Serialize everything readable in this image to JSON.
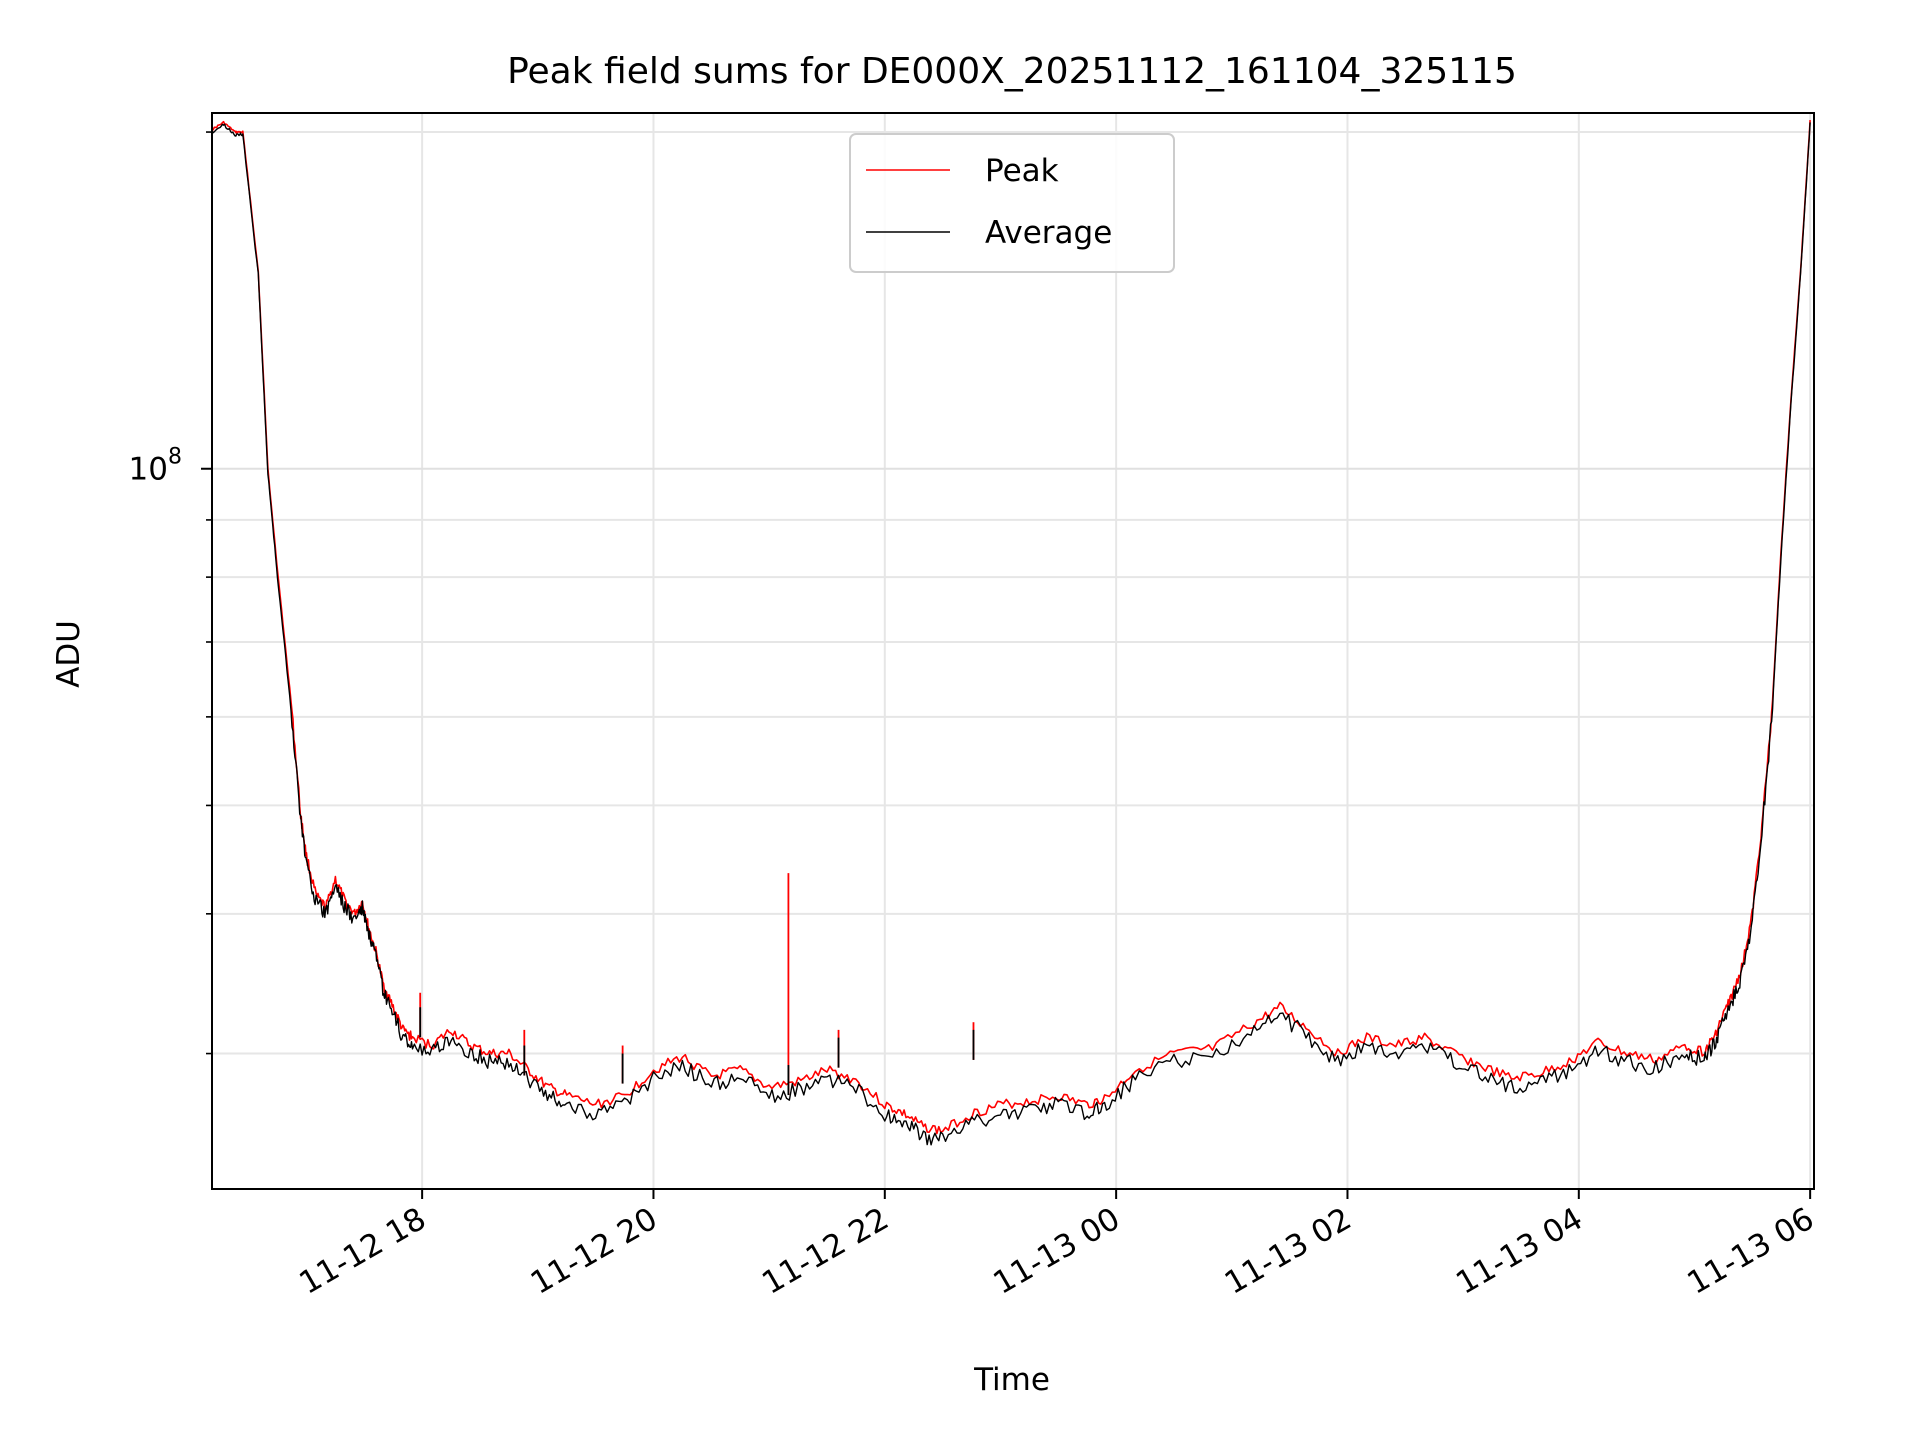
{
  "chart_data": {
    "type": "line",
    "title": "Peak field sums for DE000X_20251112_161104_325115",
    "xlabel": "Time",
    "ylabel": "ADU",
    "yscale": "log",
    "ylim": [
      22700000,
      208000000
    ],
    "xlim": [
      "2025-11-12 16:11",
      "2025-11-13 06:02"
    ],
    "grid": true,
    "legend": "upper center",
    "x_ticks": [
      {
        "value": "2025-11-12 18:00",
        "label": "11-12 18"
      },
      {
        "value": "2025-11-12 20:00",
        "label": "11-12 20"
      },
      {
        "value": "2025-11-12 22:00",
        "label": "11-12 22"
      },
      {
        "value": "2025-11-13 00:00",
        "label": "11-13 00"
      },
      {
        "value": "2025-11-13 02:00",
        "label": "11-13 02"
      },
      {
        "value": "2025-11-13 04:00",
        "label": "11-13 04"
      },
      {
        "value": "2025-11-13 06:00",
        "label": "11-13 06"
      }
    ],
    "y_major_ticks": [
      {
        "value": 100000000,
        "base": "10",
        "exp": "8"
      }
    ],
    "y_minor_ticks": [
      30000000,
      40000000,
      50000000,
      60000000,
      70000000,
      80000000,
      90000000,
      200000000
    ],
    "series": [
      {
        "name": "Peak",
        "color": "#ff0000",
        "x": [
          "2025-11-12 16:11",
          "2025-11-12 16:17",
          "2025-11-12 16:23",
          "2025-11-12 16:27",
          "2025-11-12 16:35",
          "2025-11-12 16:40",
          "2025-11-12 16:45",
          "2025-11-12 16:52",
          "2025-11-12 16:57",
          "2025-11-12 17:00",
          "2025-11-12 17:05",
          "2025-11-12 17:10",
          "2025-11-12 17:15",
          "2025-11-12 17:20",
          "2025-11-12 17:25",
          "2025-11-12 17:29",
          "2025-11-12 17:32",
          "2025-11-12 17:36",
          "2025-11-12 17:40",
          "2025-11-12 17:45",
          "2025-11-12 17:50",
          "2025-11-12 17:55",
          "2025-11-12 18:05",
          "2025-11-12 18:15",
          "2025-11-12 18:25",
          "2025-11-12 18:35",
          "2025-11-12 18:45",
          "2025-11-12 18:55",
          "2025-11-12 19:05",
          "2025-11-12 19:15",
          "2025-11-12 19:30",
          "2025-11-12 19:45",
          "2025-11-12 20:00",
          "2025-11-12 20:15",
          "2025-11-12 20:30",
          "2025-11-12 20:45",
          "2025-11-12 21:00",
          "2025-11-12 21:15",
          "2025-11-12 21:30",
          "2025-11-12 21:45",
          "2025-11-12 22:00",
          "2025-11-12 22:10",
          "2025-11-12 22:20",
          "2025-11-12 22:30",
          "2025-11-12 22:45",
          "2025-11-12 23:00",
          "2025-11-12 23:15",
          "2025-11-12 23:30",
          "2025-11-12 23:45",
          "2025-11-12 23:55",
          "2025-11-13 00:10",
          "2025-11-13 00:30",
          "2025-11-13 00:50",
          "2025-11-13 01:10",
          "2025-11-13 01:25",
          "2025-11-13 01:40",
          "2025-11-13 01:55",
          "2025-11-13 02:10",
          "2025-11-13 02:25",
          "2025-11-13 02:40",
          "2025-11-13 02:55",
          "2025-11-13 03:10",
          "2025-11-13 03:25",
          "2025-11-13 03:40",
          "2025-11-13 03:55",
          "2025-11-13 04:10",
          "2025-11-13 04:25",
          "2025-11-13 04:40",
          "2025-11-13 04:55",
          "2025-11-13 05:05",
          "2025-11-13 05:10",
          "2025-11-13 05:15",
          "2025-11-13 05:20",
          "2025-11-13 05:25",
          "2025-11-13 05:30",
          "2025-11-13 05:35",
          "2025-11-13 05:40",
          "2025-11-13 05:45",
          "2025-11-13 05:50",
          "2025-11-13 05:55",
          "2025-11-13 06:00"
        ],
        "values": [
          201000000,
          204000000,
          200000000,
          200000000,
          150000000,
          100000000,
          81000000,
          62000000,
          49000000,
          45000000,
          41500000,
          40500000,
          43000000,
          41000000,
          40000000,
          41000000,
          39000000,
          37000000,
          34500000,
          33000000,
          31500000,
          31000000,
          30500000,
          31500000,
          30500000,
          30000000,
          30000000,
          29000000,
          28000000,
          27500000,
          27000000,
          27500000,
          29000000,
          29800000,
          28600000,
          29000000,
          28000000,
          28300000,
          29000000,
          28400000,
          27000000,
          26500000,
          25800000,
          25600000,
          26500000,
          27000000,
          27200000,
          27500000,
          27000000,
          27400000,
          29000000,
          30000000,
          30300000,
          31800000,
          33000000,
          31500000,
          30000000,
          31000000,
          30500000,
          31000000,
          30000000,
          29200000,
          28500000,
          28800000,
          29500000,
          30700000,
          30000000,
          29600000,
          30500000,
          30100000,
          31000000,
          32500000,
          34000000,
          36000000,
          40000000,
          48000000,
          60000000,
          85000000,
          115000000,
          150000000,
          205000000
        ]
      },
      {
        "name": "Average",
        "color": "#000000",
        "x": [
          "2025-11-12 16:11",
          "2025-11-12 16:17",
          "2025-11-12 16:23",
          "2025-11-12 16:27",
          "2025-11-12 16:35",
          "2025-11-12 16:40",
          "2025-11-12 16:45",
          "2025-11-12 16:52",
          "2025-11-12 16:57",
          "2025-11-12 17:00",
          "2025-11-12 17:05",
          "2025-11-12 17:10",
          "2025-11-12 17:15",
          "2025-11-12 17:20",
          "2025-11-12 17:25",
          "2025-11-12 17:29",
          "2025-11-12 17:32",
          "2025-11-12 17:36",
          "2025-11-12 17:40",
          "2025-11-12 17:45",
          "2025-11-12 17:50",
          "2025-11-12 17:55",
          "2025-11-12 18:05",
          "2025-11-12 18:15",
          "2025-11-12 18:25",
          "2025-11-12 18:35",
          "2025-11-12 18:45",
          "2025-11-12 18:55",
          "2025-11-12 19:05",
          "2025-11-12 19:15",
          "2025-11-12 19:30",
          "2025-11-12 19:45",
          "2025-11-12 20:00",
          "2025-11-12 20:15",
          "2025-11-12 20:30",
          "2025-11-12 20:45",
          "2025-11-12 21:00",
          "2025-11-12 21:15",
          "2025-11-12 21:30",
          "2025-11-12 21:45",
          "2025-11-12 22:00",
          "2025-11-12 22:10",
          "2025-11-12 22:20",
          "2025-11-12 22:30",
          "2025-11-12 22:45",
          "2025-11-12 23:00",
          "2025-11-12 23:15",
          "2025-11-12 23:30",
          "2025-11-12 23:45",
          "2025-11-12 23:55",
          "2025-11-13 00:10",
          "2025-11-13 00:30",
          "2025-11-13 00:50",
          "2025-11-13 01:10",
          "2025-11-13 01:25",
          "2025-11-13 01:40",
          "2025-11-13 01:55",
          "2025-11-13 02:10",
          "2025-11-13 02:25",
          "2025-11-13 02:40",
          "2025-11-13 02:55",
          "2025-11-13 03:10",
          "2025-11-13 03:25",
          "2025-11-13 03:40",
          "2025-11-13 03:55",
          "2025-11-13 04:10",
          "2025-11-13 04:25",
          "2025-11-13 04:40",
          "2025-11-13 04:55",
          "2025-11-13 05:05",
          "2025-11-13 05:10",
          "2025-11-13 05:15",
          "2025-11-13 05:20",
          "2025-11-13 05:25",
          "2025-11-13 05:30",
          "2025-11-13 05:35",
          "2025-11-13 05:40",
          "2025-11-13 05:45",
          "2025-11-13 05:50",
          "2025-11-13 05:55",
          "2025-11-13 06:00"
        ],
        "values": [
          200000000,
          203000000,
          199000000,
          199000000,
          149000000,
          99000000,
          80000000,
          61000000,
          48500000,
          44500000,
          41000000,
          40000000,
          42500000,
          40500000,
          39500000,
          40500000,
          38500000,
          36500000,
          34000000,
          32500000,
          31000000,
          30500000,
          30000000,
          31000000,
          30000000,
          29500000,
          29500000,
          28500000,
          27500000,
          27000000,
          26500000,
          27000000,
          28500000,
          29300000,
          28100000,
          28500000,
          27500000,
          27800000,
          28500000,
          27900000,
          26500000,
          26000000,
          25300000,
          25100000,
          26000000,
          26500000,
          26700000,
          27000000,
          26500000,
          26900000,
          28500000,
          29500000,
          29800000,
          31300000,
          32500000,
          31000000,
          29500000,
          30500000,
          30000000,
          30500000,
          29500000,
          28700000,
          28000000,
          28300000,
          29000000,
          30200000,
          29500000,
          29100000,
          30000000,
          29600000,
          30500000,
          32000000,
          33500000,
          35500000,
          39500000,
          47500000,
          59500000,
          84000000,
          114000000,
          149000000,
          204000000
        ]
      }
    ],
    "spikes": [
      {
        "x": "2025-11-12 17:59",
        "peak": 34000000,
        "average": 33000000
      },
      {
        "x": "2025-11-12 18:53",
        "peak": 31500000,
        "average": 30500000
      },
      {
        "x": "2025-11-12 19:44",
        "peak": 30500000,
        "average": 30000000
      },
      {
        "x": "2025-11-12 21:10",
        "peak": 43500000,
        "average": 29300000
      },
      {
        "x": "2025-11-12 21:36",
        "peak": 31500000,
        "average": 31000000
      },
      {
        "x": "2025-11-12 22:46",
        "peak": 32000000,
        "average": 31500000
      }
    ]
  }
}
